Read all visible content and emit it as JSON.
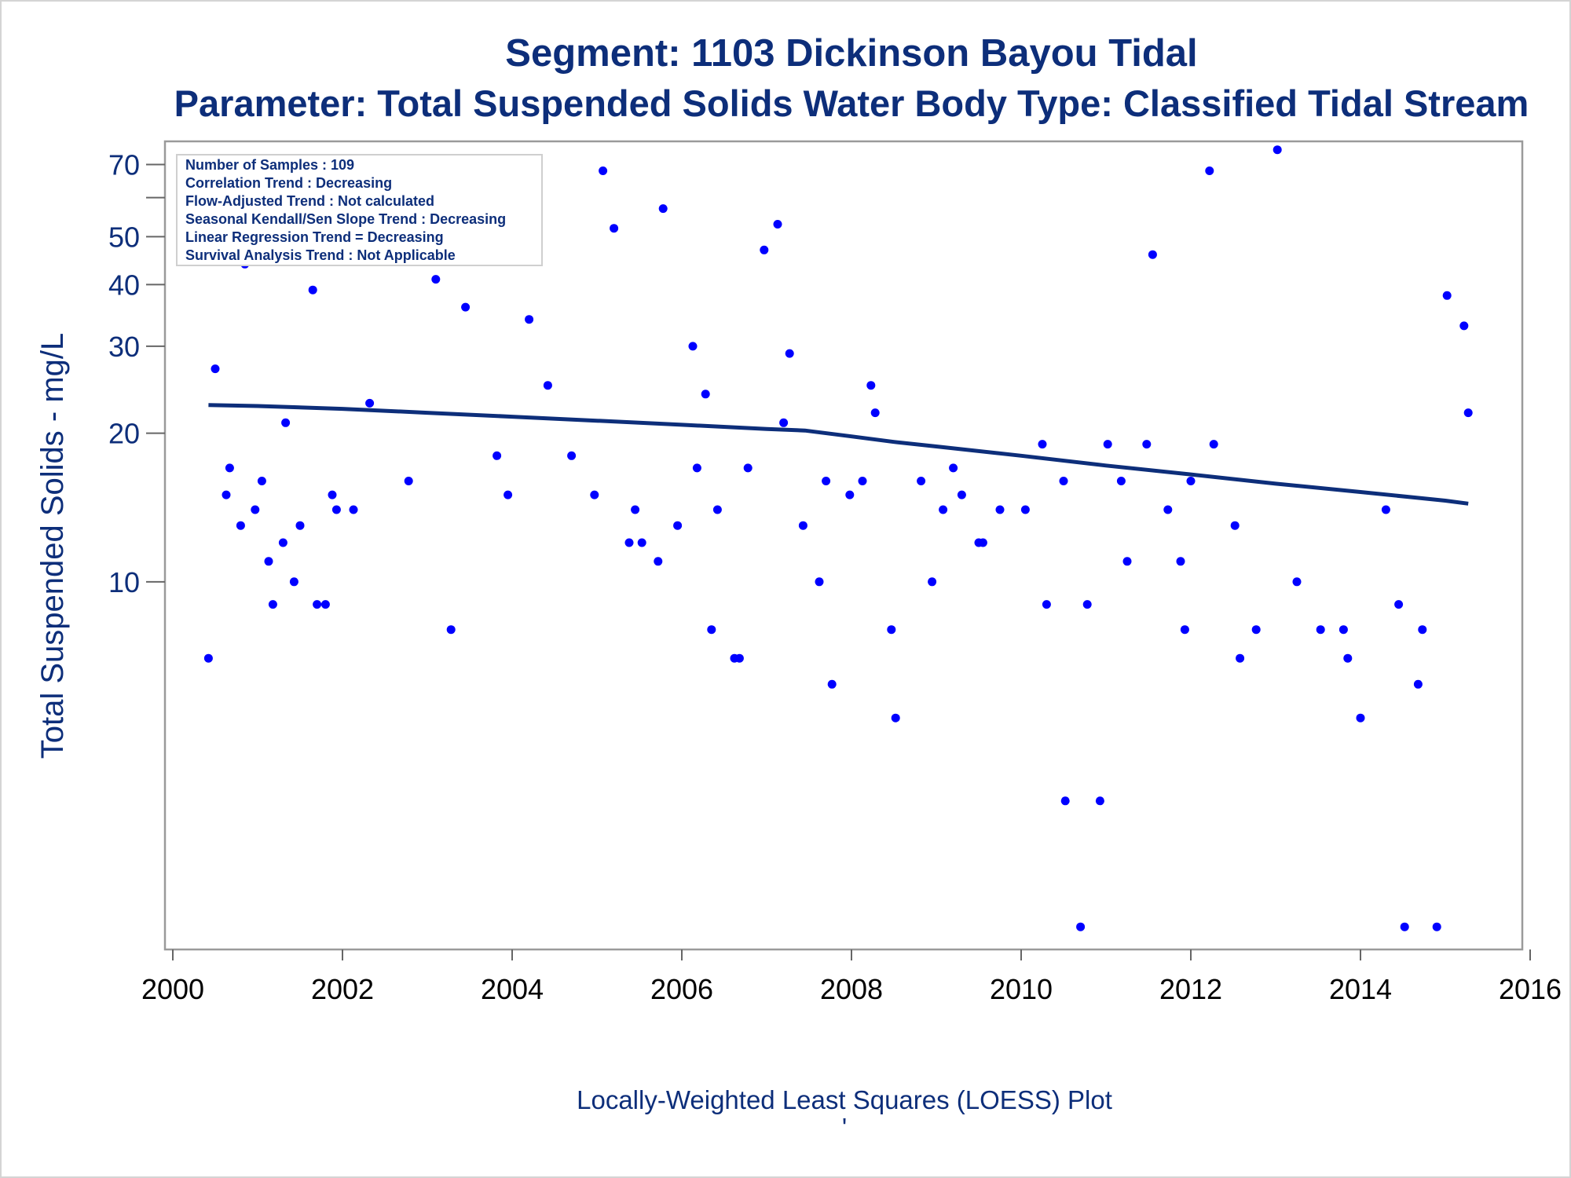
{
  "chart_data": {
    "type": "scatter",
    "title": "Segment: 1103  Dickinson Bayou Tidal",
    "subtitle": "Parameter: Total Suspended Solids   Water Body Type: Classified Tidal Stream",
    "xlabel": "",
    "ylabel": "Total Suspended Solids - mg/L",
    "footnote": "Locally-Weighted Least Squares (LOESS) Plot",
    "footnote_mark": "'",
    "xlim": [
      2000,
      2016
    ],
    "ylim": [
      1.8,
      78
    ],
    "y_scale": "log",
    "x_ticks": [
      2000,
      2002,
      2004,
      2006,
      2008,
      2010,
      2012,
      2014,
      2016
    ],
    "y_ticks": [
      10,
      20,
      30,
      40,
      50,
      70
    ],
    "y_minor_ticks": [
      60
    ],
    "grid": false,
    "colors": {
      "points": "#0000ff",
      "trend_line": "#0d2e7a",
      "axis_text_x": "#000000",
      "axis_text_y": "#0d2e7a",
      "frame": "#9a9a9a"
    },
    "inset": {
      "position": "top-left",
      "lines": [
        "Number of Samples : 109",
        "Correlation Trend : Decreasing",
        "Flow-Adjusted Trend : Not calculated",
        "Seasonal Kendall/Sen Slope Trend : Decreasing",
        "Linear Regression Trend = Decreasing",
        "Survival Analysis Trend : Not Applicable"
      ]
    },
    "series": [
      {
        "type": "scatter",
        "points": [
          [
            2000.42,
            7.0
          ],
          [
            2000.5,
            27
          ],
          [
            2000.63,
            15
          ],
          [
            2000.67,
            17
          ],
          [
            2000.8,
            13
          ],
          [
            2000.85,
            44
          ],
          [
            2000.97,
            14
          ],
          [
            2001.05,
            16
          ],
          [
            2001.13,
            11
          ],
          [
            2001.18,
            9
          ],
          [
            2001.3,
            12
          ],
          [
            2001.33,
            21
          ],
          [
            2001.43,
            10
          ],
          [
            2001.5,
            13
          ],
          [
            2001.65,
            39
          ],
          [
            2001.7,
            9
          ],
          [
            2001.8,
            9
          ],
          [
            2001.88,
            15
          ],
          [
            2001.93,
            14
          ],
          [
            2002.13,
            14
          ],
          [
            2002.32,
            23
          ],
          [
            2002.72,
            59
          ],
          [
            2002.78,
            16
          ],
          [
            2002.95,
            52
          ],
          [
            2003.1,
            41
          ],
          [
            2003.28,
            8
          ],
          [
            2003.45,
            36
          ],
          [
            2003.62,
            52
          ],
          [
            2003.82,
            18
          ],
          [
            2003.95,
            15
          ],
          [
            2004.2,
            34
          ],
          [
            2004.42,
            25
          ],
          [
            2004.7,
            18
          ],
          [
            2004.97,
            15
          ],
          [
            2005.07,
            68
          ],
          [
            2005.2,
            52
          ],
          [
            2005.38,
            12
          ],
          [
            2005.45,
            14
          ],
          [
            2005.53,
            12
          ],
          [
            2005.72,
            11
          ],
          [
            2005.78,
            57
          ],
          [
            2005.95,
            13
          ],
          [
            2006.13,
            30
          ],
          [
            2006.18,
            17
          ],
          [
            2006.28,
            24
          ],
          [
            2006.35,
            8
          ],
          [
            2006.42,
            14
          ],
          [
            2006.62,
            7
          ],
          [
            2006.68,
            7
          ],
          [
            2006.78,
            17
          ],
          [
            2006.97,
            47
          ],
          [
            2007.13,
            53
          ],
          [
            2007.2,
            21
          ],
          [
            2007.27,
            29
          ],
          [
            2007.43,
            13
          ],
          [
            2007.62,
            10
          ],
          [
            2007.7,
            16
          ],
          [
            2007.77,
            6.2
          ],
          [
            2007.98,
            15
          ],
          [
            2008.13,
            16
          ],
          [
            2008.23,
            25
          ],
          [
            2008.28,
            22
          ],
          [
            2008.47,
            8
          ],
          [
            2008.52,
            5.3
          ],
          [
            2008.82,
            16
          ],
          [
            2008.95,
            10
          ],
          [
            2009.08,
            14
          ],
          [
            2009.2,
            17
          ],
          [
            2009.3,
            15
          ],
          [
            2009.5,
            12
          ],
          [
            2009.55,
            12
          ],
          [
            2009.75,
            14
          ],
          [
            2010.05,
            14
          ],
          [
            2010.25,
            19
          ],
          [
            2010.3,
            9
          ],
          [
            2010.5,
            16
          ],
          [
            2010.52,
            3.6
          ],
          [
            2010.7,
            2.0
          ],
          [
            2010.78,
            9
          ],
          [
            2010.93,
            3.6
          ],
          [
            2011.02,
            19
          ],
          [
            2011.18,
            16
          ],
          [
            2011.25,
            11
          ],
          [
            2011.48,
            19
          ],
          [
            2011.55,
            46
          ],
          [
            2011.73,
            14
          ],
          [
            2011.88,
            11
          ],
          [
            2011.93,
            8
          ],
          [
            2012.0,
            16
          ],
          [
            2012.22,
            68
          ],
          [
            2012.27,
            19
          ],
          [
            2012.52,
            13
          ],
          [
            2012.58,
            7
          ],
          [
            2012.77,
            8
          ],
          [
            2013.02,
            75
          ],
          [
            2013.25,
            10
          ],
          [
            2013.53,
            8
          ],
          [
            2013.8,
            8
          ],
          [
            2013.85,
            7
          ],
          [
            2014.0,
            5.3
          ],
          [
            2014.3,
            14
          ],
          [
            2014.45,
            9
          ],
          [
            2014.52,
            2.0
          ],
          [
            2014.68,
            6.2
          ],
          [
            2014.73,
            8
          ],
          [
            2014.9,
            2.0
          ],
          [
            2015.02,
            38
          ],
          [
            2015.22,
            33
          ],
          [
            2015.27,
            22
          ]
        ]
      },
      {
        "type": "line",
        "points": [
          [
            2000.42,
            22.8
          ],
          [
            2001.0,
            22.7
          ],
          [
            2002.0,
            22.4
          ],
          [
            2003.0,
            22.0
          ],
          [
            2004.0,
            21.6
          ],
          [
            2005.0,
            21.2
          ],
          [
            2006.0,
            20.8
          ],
          [
            2007.0,
            20.4
          ],
          [
            2007.45,
            20.25
          ],
          [
            2008.0,
            19.7
          ],
          [
            2008.5,
            19.2
          ],
          [
            2009.0,
            18.8
          ],
          [
            2010.0,
            18.0
          ],
          [
            2011.0,
            17.2
          ],
          [
            2012.0,
            16.5
          ],
          [
            2013.0,
            15.8
          ],
          [
            2014.0,
            15.2
          ],
          [
            2015.0,
            14.6
          ],
          [
            2015.27,
            14.4
          ]
        ]
      }
    ]
  }
}
